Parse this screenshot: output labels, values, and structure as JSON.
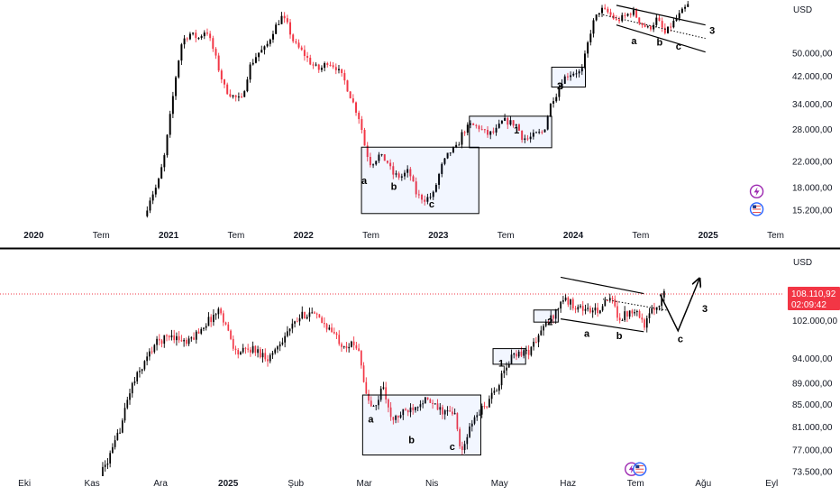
{
  "chart_data": [
    {
      "type": "candlestick",
      "currency": "USD",
      "y_scale": "log",
      "ylim": [
        13800,
        70000
      ],
      "xlim": [
        2019.75,
        2025.55
      ],
      "y_ticks": [
        {
          "value": 50000,
          "label": "50.000,00"
        },
        {
          "value": 42000,
          "label": "42.000,00"
        },
        {
          "value": 34000,
          "label": "34.000,00"
        },
        {
          "value": 28000,
          "label": "28.000,00"
        },
        {
          "value": 22000,
          "label": "22.000,00"
        },
        {
          "value": 18000,
          "label": "18.000,00"
        },
        {
          "value": 15200,
          "label": "15.200,00"
        }
      ],
      "x_ticks": [
        {
          "value": 2020.0,
          "label": "2020"
        },
        {
          "value": 2020.5,
          "label": "Tem"
        },
        {
          "value": 2021.0,
          "label": "2021"
        },
        {
          "value": 2021.5,
          "label": "Tem"
        },
        {
          "value": 2022.0,
          "label": "2022"
        },
        {
          "value": 2022.5,
          "label": "Tem"
        },
        {
          "value": 2023.0,
          "label": "2023"
        },
        {
          "value": 2023.5,
          "label": "Tem"
        },
        {
          "value": 2024.0,
          "label": "2024"
        },
        {
          "value": 2024.5,
          "label": "Tem"
        },
        {
          "value": 2025.0,
          "label": "2025"
        },
        {
          "value": 2025.5,
          "label": "Tem"
        }
      ],
      "path": [
        [
          2020.82,
          14500
        ],
        [
          2020.86,
          16500
        ],
        [
          2020.92,
          18500
        ],
        [
          2020.97,
          23000
        ],
        [
          2021.02,
          33000
        ],
        [
          2021.06,
          44000
        ],
        [
          2021.1,
          55000
        ],
        [
          2021.16,
          58000
        ],
        [
          2021.22,
          56000
        ],
        [
          2021.28,
          60000
        ],
        [
          2021.34,
          50000
        ],
        [
          2021.38,
          43000
        ],
        [
          2021.42,
          38000
        ],
        [
          2021.48,
          36000
        ],
        [
          2021.54,
          35000
        ],
        [
          2021.6,
          45000
        ],
        [
          2021.66,
          50000
        ],
        [
          2021.72,
          52000
        ],
        [
          2021.78,
          60000
        ],
        [
          2021.84,
          66000
        ],
        [
          2021.88,
          62000
        ],
        [
          2021.93,
          54000
        ],
        [
          2022.0,
          50000
        ],
        [
          2022.06,
          46000
        ],
        [
          2022.12,
          44000
        ],
        [
          2022.18,
          47000
        ],
        [
          2022.24,
          45000
        ],
        [
          2022.3,
          41000
        ],
        [
          2022.36,
          35000
        ],
        [
          2022.42,
          30000
        ],
        [
          2022.46,
          24000
        ],
        [
          2022.5,
          21500
        ],
        [
          2022.56,
          23000
        ],
        [
          2022.62,
          22000
        ],
        [
          2022.66,
          20000
        ],
        [
          2022.72,
          19500
        ],
        [
          2022.78,
          20500
        ],
        [
          2022.84,
          17000
        ],
        [
          2022.9,
          16500
        ],
        [
          2022.96,
          17000
        ],
        [
          2023.02,
          21000
        ],
        [
          2023.08,
          23500
        ],
        [
          2023.14,
          24500
        ],
        [
          2023.18,
          27500
        ],
        [
          2023.24,
          29000
        ],
        [
          2023.3,
          28500
        ],
        [
          2023.36,
          27000
        ],
        [
          2023.42,
          27500
        ],
        [
          2023.48,
          30000
        ],
        [
          2023.54,
          29500
        ],
        [
          2023.58,
          29000
        ],
        [
          2023.62,
          26500
        ],
        [
          2023.66,
          26000
        ],
        [
          2023.72,
          27000
        ],
        [
          2023.78,
          27500
        ],
        [
          2023.84,
          35000
        ],
        [
          2023.88,
          37000
        ],
        [
          2023.92,
          41000
        ],
        [
          2023.96,
          42500
        ],
        [
          2024.02,
          43500
        ],
        [
          2024.06,
          43000
        ],
        [
          2024.1,
          52000
        ],
        [
          2024.14,
          62000
        ],
        [
          2024.2,
          70000
        ],
        [
          2024.26,
          68000
        ],
        [
          2024.32,
          64000
        ],
        [
          2024.38,
          66000
        ],
        [
          2024.44,
          69000
        ],
        [
          2024.5,
          63000
        ],
        [
          2024.56,
          60000
        ],
        [
          2024.62,
          65000
        ],
        [
          2024.68,
          58000
        ],
        [
          2024.74,
          63000
        ],
        [
          2024.8,
          68000
        ],
        [
          2024.85,
          72000
        ]
      ],
      "wave_labels": [
        {
          "text": "a",
          "x": 2022.45,
          "y": 18500
        },
        {
          "text": "b",
          "x": 2022.67,
          "y": 17700
        },
        {
          "text": "c",
          "x": 2022.95,
          "y": 15500
        },
        {
          "text": "1",
          "x": 2023.58,
          "y": 27200
        },
        {
          "text": "2",
          "x": 2023.9,
          "y": 38000
        },
        {
          "text": "a",
          "x": 2024.45,
          "y": 53500
        },
        {
          "text": "b",
          "x": 2024.64,
          "y": 53000
        },
        {
          "text": "c",
          "x": 2024.78,
          "y": 51500
        },
        {
          "text": "3",
          "x": 2025.03,
          "y": 58000
        }
      ],
      "boxes": [
        {
          "x": [
            2022.43,
            2023.3
          ],
          "y": [
            14800,
            24500
          ]
        },
        {
          "x": [
            2023.23,
            2023.84
          ],
          "y": [
            24400,
            31000
          ]
        },
        {
          "x": [
            2023.84,
            2024.09
          ],
          "y": [
            38700,
            45000
          ]
        }
      ],
      "channel": {
        "upper": [
          [
            2024.32,
            72000
          ],
          [
            2024.98,
            62000
          ]
        ],
        "lower": [
          [
            2024.32,
            62000
          ],
          [
            2024.98,
            50500
          ]
        ],
        "middle": [
          [
            2024.22,
            67000
          ],
          [
            2024.98,
            56000
          ]
        ]
      },
      "symbols": [
        {
          "name": "lightning-icon",
          "color": "#9c27b0",
          "x": 2025.36,
          "y": 17500
        },
        {
          "name": "us-flag-icon",
          "color": "#2962ff",
          "x": 2025.36,
          "y": 15300
        }
      ]
    },
    {
      "type": "candlestick",
      "currency": "USD",
      "y_scale": "log",
      "ylim": [
        71500,
        116000
      ],
      "xlim": [
        2024.72,
        2025.68
      ],
      "last_price": "108.110,92",
      "countdown": "02:09:42",
      "last_price_value": 108110.92,
      "y_ticks": [
        {
          "value": 102000,
          "label": "102.000,00"
        },
        {
          "value": 94000,
          "label": "94.000,00"
        },
        {
          "value": 89000,
          "label": "89.000,00"
        },
        {
          "value": 85000,
          "label": "85.000,00"
        },
        {
          "value": 81000,
          "label": "81.000,00"
        },
        {
          "value": 77000,
          "label": "77.000,00"
        },
        {
          "value": 73500,
          "label": "73.500,00"
        }
      ],
      "x_ticks": [
        {
          "value": 2024.75,
          "label": "Eki"
        },
        {
          "value": 2024.833,
          "label": "Kas"
        },
        {
          "value": 2024.917,
          "label": "Ara"
        },
        {
          "value": 2025.0,
          "label": "2025"
        },
        {
          "value": 2025.083,
          "label": "Şub"
        },
        {
          "value": 2025.167,
          "label": "Mar"
        },
        {
          "value": 2025.25,
          "label": "Nis"
        },
        {
          "value": 2025.333,
          "label": "May"
        },
        {
          "value": 2025.417,
          "label": "Haz"
        },
        {
          "value": 2025.5,
          "label": "Tem"
        },
        {
          "value": 2025.583,
          "label": "Ağu"
        },
        {
          "value": 2025.667,
          "label": "Eyl"
        }
      ],
      "path": [
        [
          2024.84,
          72000
        ],
        [
          2024.86,
          77500
        ],
        [
          2024.87,
          82000
        ],
        [
          2024.88,
          88000
        ],
        [
          2024.89,
          91000
        ],
        [
          2024.91,
          97000
        ],
        [
          2024.93,
          99000
        ],
        [
          2024.95,
          97000
        ],
        [
          2024.97,
          101000
        ],
        [
          2024.99,
          104500
        ],
        [
          2025.01,
          95000
        ],
        [
          2025.03,
          96000
        ],
        [
          2025.05,
          94000
        ],
        [
          2025.07,
          99000
        ],
        [
          2025.09,
          103000
        ],
        [
          2025.1,
          104000
        ],
        [
          2025.12,
          101000
        ],
        [
          2025.14,
          97000
        ],
        [
          2025.16,
          96500
        ],
        [
          2025.17,
          86000
        ],
        [
          2025.18,
          84000
        ],
        [
          2025.19,
          89000
        ],
        [
          2025.2,
          82000
        ],
        [
          2025.22,
          84000
        ],
        [
          2025.24,
          86000
        ],
        [
          2025.26,
          84000
        ],
        [
          2025.28,
          83000
        ],
        [
          2025.285,
          76000
        ],
        [
          2025.29,
          78000
        ],
        [
          2025.3,
          82000
        ],
        [
          2025.31,
          84000
        ],
        [
          2025.32,
          85500
        ],
        [
          2025.335,
          90000
        ],
        [
          2025.35,
          95000
        ],
        [
          2025.37,
          95500
        ],
        [
          2025.385,
          100000
        ],
        [
          2025.4,
          103500
        ],
        [
          2025.41,
          107000
        ],
        [
          2025.43,
          105000
        ],
        [
          2025.45,
          104000
        ],
        [
          2025.47,
          107000
        ],
        [
          2025.48,
          102500
        ],
        [
          2025.5,
          105000
        ],
        [
          2025.51,
          101000
        ],
        [
          2025.52,
          104000
        ],
        [
          2025.53,
          106500
        ],
        [
          2025.535,
          108111
        ]
      ],
      "wave_labels": [
        {
          "text": "a",
          "x": 2025.175,
          "y": 81800
        },
        {
          "text": "b",
          "x": 2025.225,
          "y": 78200
        },
        {
          "text": "c",
          "x": 2025.275,
          "y": 77000
        },
        {
          "text": "1",
          "x": 2025.335,
          "y": 92300
        },
        {
          "text": "2",
          "x": 2025.395,
          "y": 101000
        },
        {
          "text": "a",
          "x": 2025.44,
          "y": 98500
        },
        {
          "text": "b",
          "x": 2025.48,
          "y": 98000
        },
        {
          "text": "c",
          "x": 2025.555,
          "y": 97300
        },
        {
          "text": "3",
          "x": 2025.585,
          "y": 103900
        }
      ],
      "boxes": [
        {
          "x": [
            2025.165,
            2025.31
          ],
          "y": [
            76200,
            86800
          ]
        },
        {
          "x": [
            2025.325,
            2025.365
          ],
          "y": [
            92800,
            96000
          ]
        },
        {
          "x": [
            2025.375,
            2025.405
          ],
          "y": [
            101700,
            104400
          ]
        }
      ],
      "channel": {
        "upper": [
          [
            2025.408,
            112100
          ],
          [
            2025.51,
            108200
          ]
        ],
        "lower": [
          [
            2025.408,
            102400
          ],
          [
            2025.51,
            99600
          ]
        ],
        "middle": [
          [
            2025.46,
            106900
          ],
          [
            2025.54,
            104300
          ]
        ]
      },
      "projection": [
        [
          2025.53,
          108000
        ],
        [
          2025.552,
          99800
        ],
        [
          2025.578,
          111600
        ]
      ],
      "symbols": [
        {
          "name": "lightning-icon",
          "color": "#9c27b0",
          "x": 2025.495,
          "y": 73900
        },
        {
          "name": "us-flag-icon",
          "color": "#2962ff",
          "x": 2025.505,
          "y": 73900
        }
      ]
    }
  ]
}
